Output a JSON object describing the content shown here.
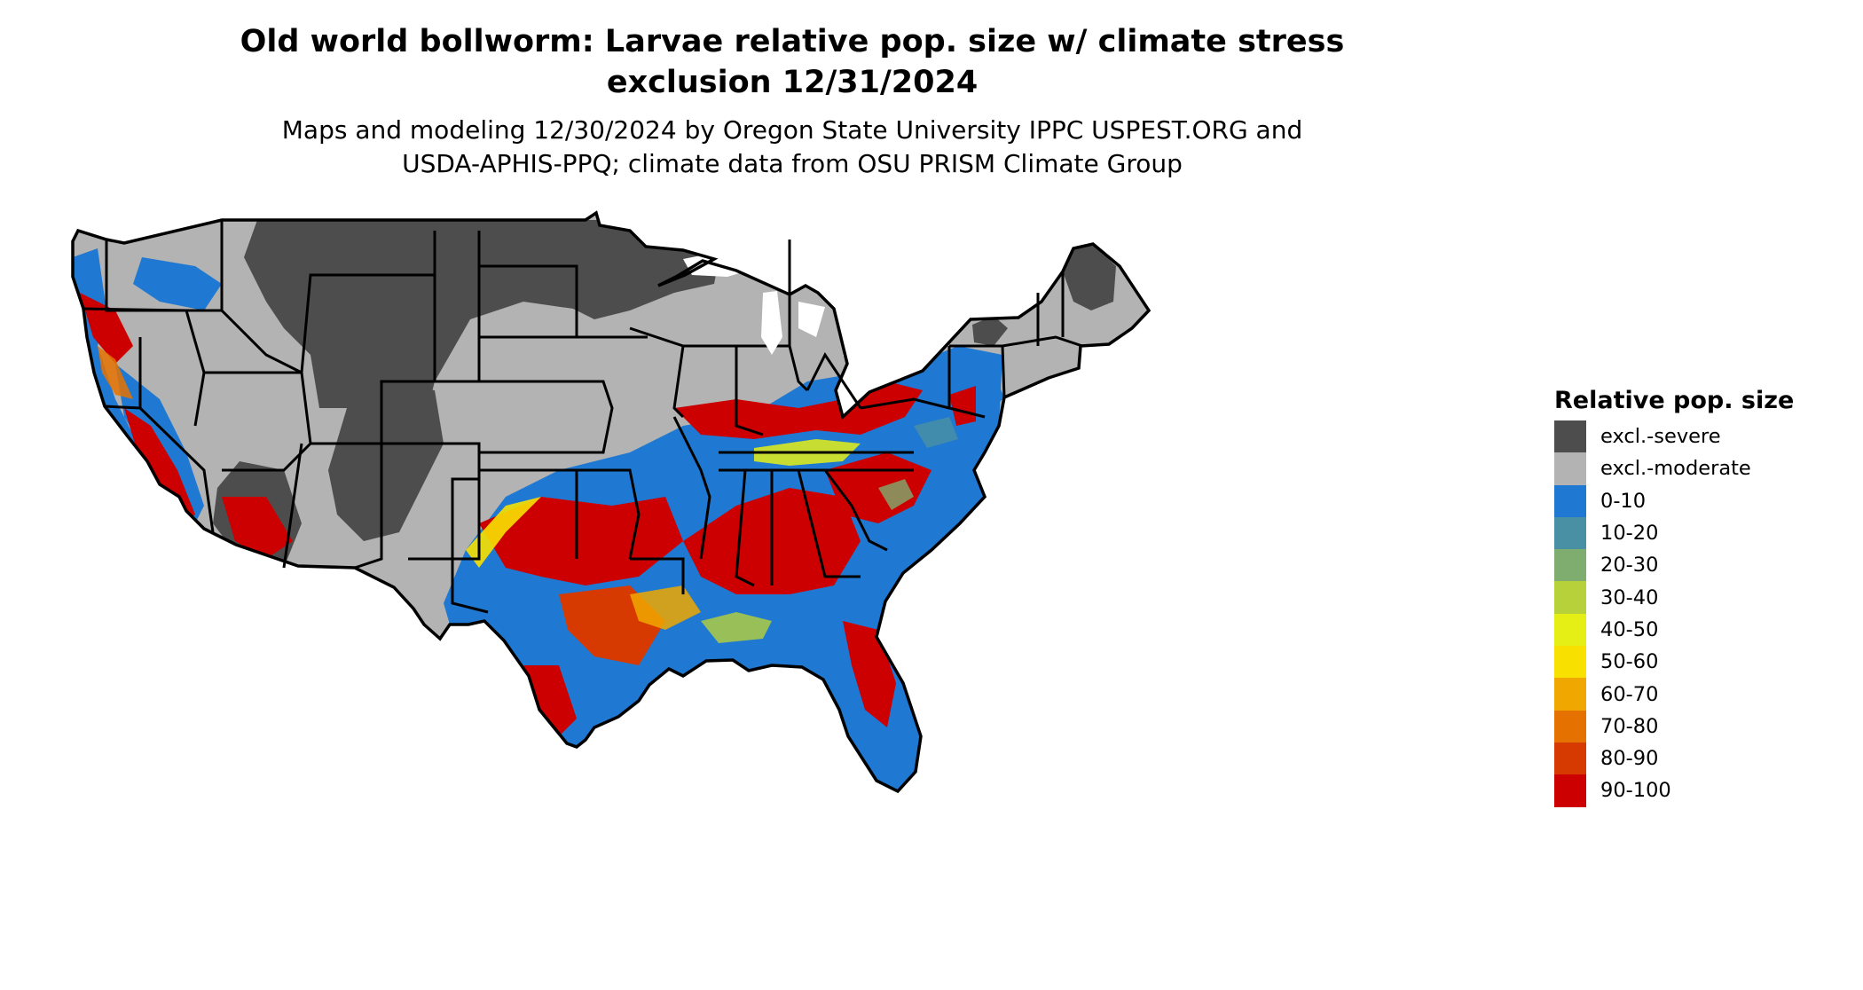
{
  "title": {
    "line1": "Old world bollworm: Larvae relative pop. size w/ climate stress",
    "line2": "exclusion 12/31/2024"
  },
  "subtitle": {
    "line1": "Maps and modeling 12/30/2024 by Oregon State University IPPC USPEST.ORG and",
    "line2": "USDA-APHIS-PPQ; climate data from OSU PRISM Climate Group"
  },
  "legend": {
    "title": "Relative pop. size",
    "items": [
      {
        "label": "excl.-severe",
        "color": "#4d4d4d"
      },
      {
        "label": "excl.-moderate",
        "color": "#b3b3b3"
      },
      {
        "label": "0-10",
        "color": "#1f78d1"
      },
      {
        "label": "10-20",
        "color": "#4a90a4"
      },
      {
        "label": "20-30",
        "color": "#7fad70"
      },
      {
        "label": "30-40",
        "color": "#b7d13a"
      },
      {
        "label": "40-50",
        "color": "#e5ee15"
      },
      {
        "label": "50-60",
        "color": "#f8e000"
      },
      {
        "label": "60-70",
        "color": "#f0a800"
      },
      {
        "label": "70-80",
        "color": "#e57200"
      },
      {
        "label": "80-90",
        "color": "#d73a00"
      },
      {
        "label": "90-100",
        "color": "#cc0000"
      }
    ]
  }
}
